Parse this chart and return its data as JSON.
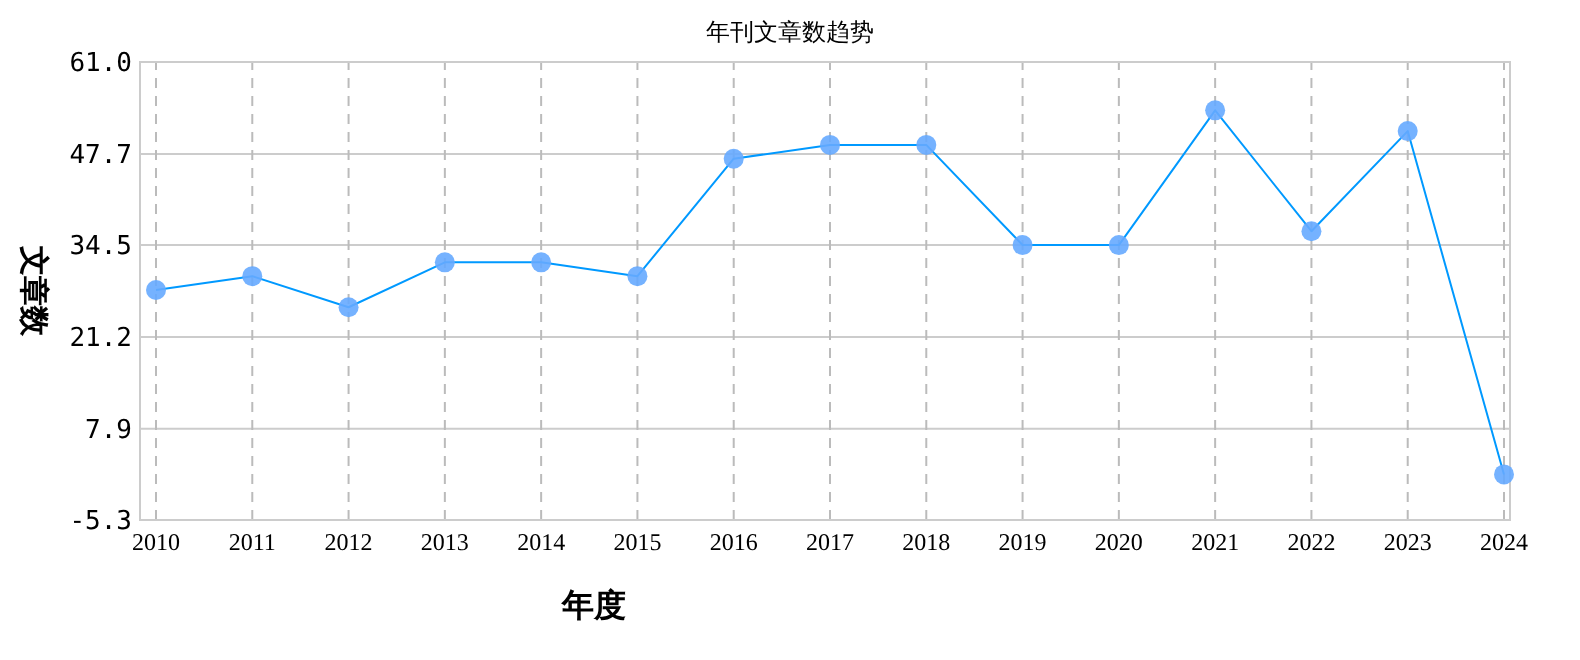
{
  "chart_data": {
    "type": "line",
    "title": "年刊文章数趋势",
    "xlabel": "年度",
    "ylabel": "文章数",
    "categories": [
      "2010",
      "2011",
      "2012",
      "2013",
      "2014",
      "2015",
      "2016",
      "2017",
      "2018",
      "2019",
      "2020",
      "2021",
      "2022",
      "2023",
      "2024"
    ],
    "series": [
      {
        "color": "#0099ff",
        "values": [
          28,
          30,
          25.5,
          32,
          32,
          30,
          47,
          49,
          49,
          34.5,
          34.5,
          54,
          36.5,
          51,
          1.3
        ]
      }
    ],
    "ylim": [
      -5.3,
      61.0
    ],
    "yticks": [
      {
        "value": -5.3,
        "label": "-5.3"
      },
      {
        "value": 7.9,
        "label": "7.9"
      },
      {
        "value": 21.2,
        "label": "21.2"
      },
      {
        "value": 34.5,
        "label": "34.5"
      },
      {
        "value": 47.7,
        "label": "47.7"
      },
      {
        "value": 61.0,
        "label": "61.0"
      }
    ],
    "grid": true,
    "marker": "circle",
    "line_style": "solid"
  }
}
